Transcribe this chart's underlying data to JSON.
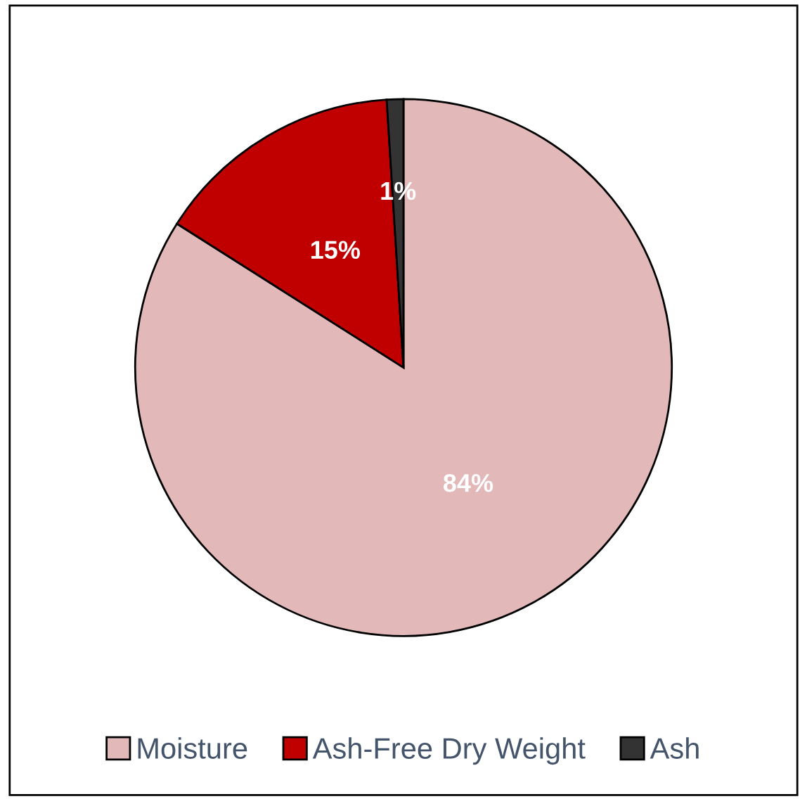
{
  "chart_data": {
    "type": "pie",
    "categories": [
      "Moisture",
      "Ash-Free Dry Weight",
      "Ash"
    ],
    "values": [
      84,
      15,
      1
    ],
    "colors": [
      "#e2b8b8",
      "#c00000",
      "#333333"
    ],
    "value_labels": [
      "84%",
      "15%",
      "1%"
    ],
    "legend": "bottom"
  }
}
